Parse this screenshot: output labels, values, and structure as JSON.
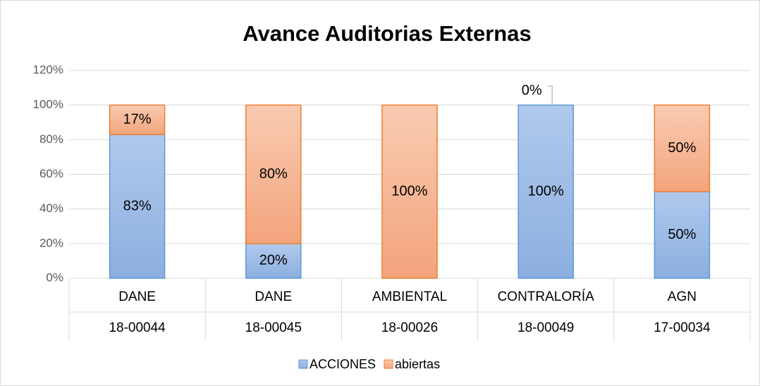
{
  "chart_data": {
    "type": "stacked_bar",
    "title": "Avance Auditorias Externas",
    "categories": [
      "DANE",
      "DANE",
      "AMBIENTAL",
      "CONTRALORÍA",
      "AGN"
    ],
    "subcategories": [
      "18-00044",
      "18-00045",
      "18-00026",
      "18-00049",
      "17-00034"
    ],
    "series": [
      {
        "name": "ACCIONES",
        "color": "#9dbbe6",
        "values": [
          83,
          20,
          0,
          100,
          50
        ],
        "value_labels": [
          "83%",
          "20%",
          null,
          "100%",
          "50%"
        ]
      },
      {
        "name": "abiertas",
        "color": "#f6b596",
        "values": [
          17,
          80,
          100,
          0,
          50
        ],
        "value_labels": [
          "17%",
          "80%",
          "100%",
          "0%",
          "50%"
        ]
      }
    ],
    "ylim": [
      0,
      120
    ],
    "yticks": [
      {
        "value": 0,
        "label": "0%"
      },
      {
        "value": 20,
        "label": "20%"
      },
      {
        "value": 40,
        "label": "40%"
      },
      {
        "value": 60,
        "label": "60%"
      },
      {
        "value": 80,
        "label": "80%"
      },
      {
        "value": 100,
        "label": "100%"
      },
      {
        "value": 120,
        "label": "120%"
      }
    ],
    "grid": true,
    "legend": "bottom"
  }
}
